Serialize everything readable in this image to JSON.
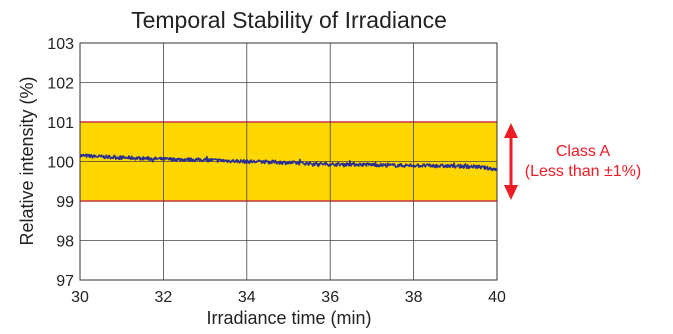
{
  "chart_data": {
    "type": "line",
    "title": "Temporal Stability of Irradiance",
    "xlabel": "Irradiance time (min)",
    "ylabel": "Relative intensity (%)",
    "xlim": [
      30,
      40
    ],
    "ylim": [
      97,
      103
    ],
    "x_ticks": [
      "30",
      "32",
      "34",
      "36",
      "38",
      "40"
    ],
    "y_ticks": [
      "97",
      "98",
      "99",
      "100",
      "101",
      "102",
      "103"
    ],
    "grid": true,
    "band": {
      "from": 99,
      "to": 101,
      "color": "#ffd700",
      "edge_color": "#cc3344"
    },
    "annotation": {
      "line1": "Class A",
      "line2": "(Less than ±1%)",
      "color": "#ee1c25"
    },
    "series": [
      {
        "color": "#2b2f8f",
        "x": [
          30.0,
          30.5,
          31.0,
          31.5,
          32.0,
          32.5,
          33.0,
          33.5,
          34.0,
          34.5,
          35.0,
          35.5,
          36.0,
          36.5,
          37.0,
          37.5,
          38.0,
          38.5,
          39.0,
          39.5,
          40.0
        ],
        "y": [
          100.15,
          100.12,
          100.1,
          100.08,
          100.06,
          100.05,
          100.04,
          100.02,
          100.0,
          99.99,
          99.97,
          99.95,
          99.93,
          99.93,
          99.92,
          99.9,
          99.9,
          99.89,
          99.88,
          99.87,
          99.8
        ]
      }
    ]
  }
}
